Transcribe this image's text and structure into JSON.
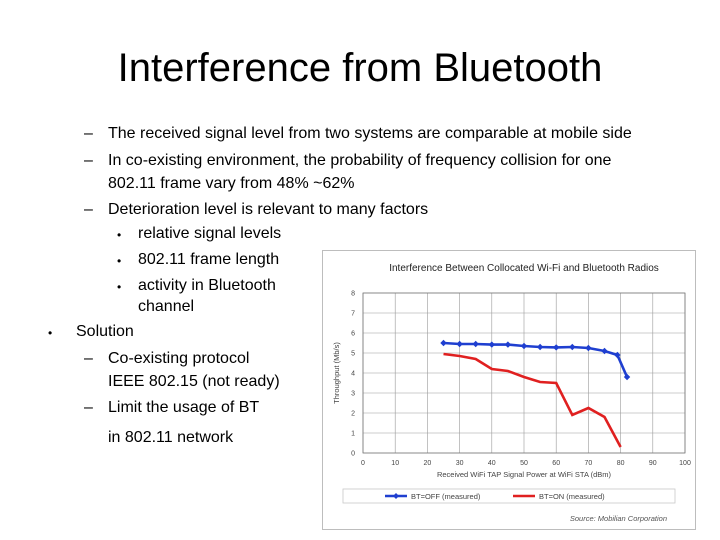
{
  "slide": {
    "title": "Interference from Bluetooth",
    "bullets": {
      "b1": "The received signal level from two systems are comparable at mobile side",
      "b2_line1": "In co-existing environment,  the probability of frequency collision for one",
      "b2_line2": "802.11 frame vary from 48% ~62%",
      "b3": "Deterioration level is relevant to many factors",
      "sub1": "relative signal levels",
      "sub2": "802.11 frame length",
      "sub3_line1": "activity in Bluetooth",
      "sub3_line2": "channel",
      "solution": "Solution",
      "s1_line1": "Co-existing protocol",
      "s1_line2": "IEEE 802.15 (not ready)",
      "s2": "Limit the usage of BT",
      "s2_cont": "in 802.11 network"
    },
    "markers": {
      "dash": "–",
      "bullet": "•"
    }
  },
  "chart_data": {
    "type": "line",
    "title": "Interference Between Collocated Wi-Fi and Bluetooth Radios",
    "xlabel": "Received WiFi TAP Signal Power at WiFi STA (dBm)",
    "ylabel": "Throughput (Mb/s)",
    "xlim": [
      0,
      100
    ],
    "ylim": [
      0,
      8
    ],
    "x_ticks": [
      "0",
      "10",
      "20",
      "30",
      "40",
      "50",
      "60",
      "70",
      "80",
      "90",
      "100"
    ],
    "y_ticks": [
      "0",
      "1",
      "2",
      "3",
      "4",
      "5",
      "6",
      "7",
      "8"
    ],
    "grid": true,
    "legend_position": "bottom",
    "footer": "Source: Mobilian Corporation",
    "series": [
      {
        "name": "BT=OFF (measured)",
        "color": "#1f3fd0",
        "points": [
          [
            25,
            5.5
          ],
          [
            30,
            5.45
          ],
          [
            35,
            5.45
          ],
          [
            40,
            5.42
          ],
          [
            45,
            5.42
          ],
          [
            50,
            5.35
          ],
          [
            55,
            5.3
          ],
          [
            60,
            5.28
          ],
          [
            65,
            5.3
          ],
          [
            70,
            5.25
          ],
          [
            75,
            5.1
          ],
          [
            79,
            4.9
          ],
          [
            82,
            3.8
          ]
        ]
      },
      {
        "name": "BT=ON (measured)",
        "color": "#e02020",
        "points": [
          [
            25,
            4.95
          ],
          [
            30,
            4.85
          ],
          [
            35,
            4.7
          ],
          [
            40,
            4.2
          ],
          [
            45,
            4.1
          ],
          [
            50,
            3.8
          ],
          [
            55,
            3.55
          ],
          [
            60,
            3.5
          ],
          [
            65,
            1.9
          ],
          [
            70,
            2.25
          ],
          [
            75,
            1.8
          ],
          [
            80,
            0.3
          ]
        ]
      }
    ]
  }
}
